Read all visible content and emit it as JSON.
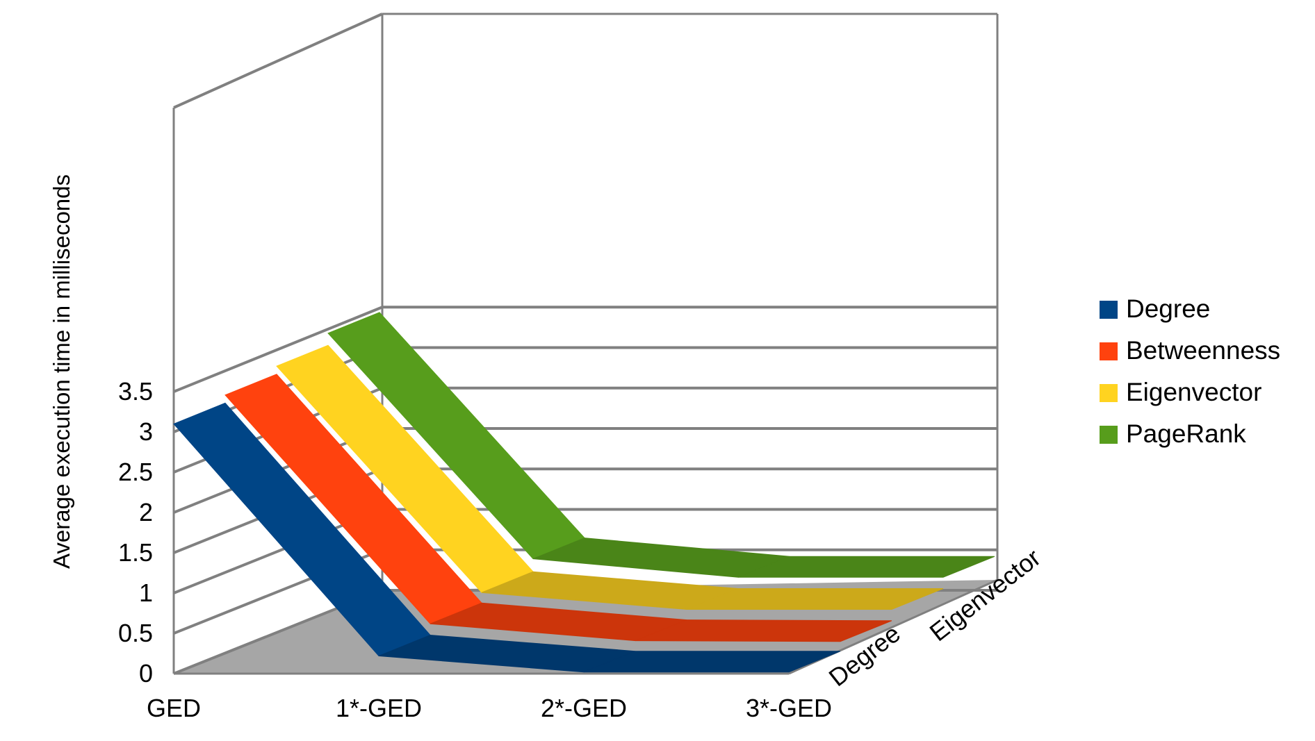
{
  "chart_data": {
    "type": "area",
    "variant": "3d-deep",
    "title": "",
    "xlabel": "",
    "ylabel": "Average execution time in milliseconds",
    "ylim": [
      0,
      3.5
    ],
    "yticks": [
      "0",
      "0.5",
      "1",
      "1.5",
      "2",
      "2.5",
      "3",
      "3.5"
    ],
    "categories": [
      "GED",
      "1*-GED",
      "2*-GED",
      "3*-GED"
    ],
    "depth_labels": [
      "Degree",
      "Eigenvector"
    ],
    "series": [
      {
        "name": "Degree",
        "values": [
          3.1,
          0.22,
          0.02,
          0.02
        ]
      },
      {
        "name": "Betweenness",
        "values": [
          3.2,
          0.36,
          0.15,
          0.14
        ]
      },
      {
        "name": "Eigenvector",
        "values": [
          3.3,
          0.49,
          0.28,
          0.28
        ]
      },
      {
        "name": "PageRank",
        "values": [
          3.45,
          0.65,
          0.42,
          0.42
        ]
      }
    ],
    "colors": {
      "Degree": "#004586",
      "Betweenness": "#ff420e",
      "Eigenvector": "#ffd320",
      "PageRank": "#579d1c",
      "floor": "#a6a6a6",
      "grid": "#808080"
    },
    "grid": true,
    "legend": "right"
  }
}
